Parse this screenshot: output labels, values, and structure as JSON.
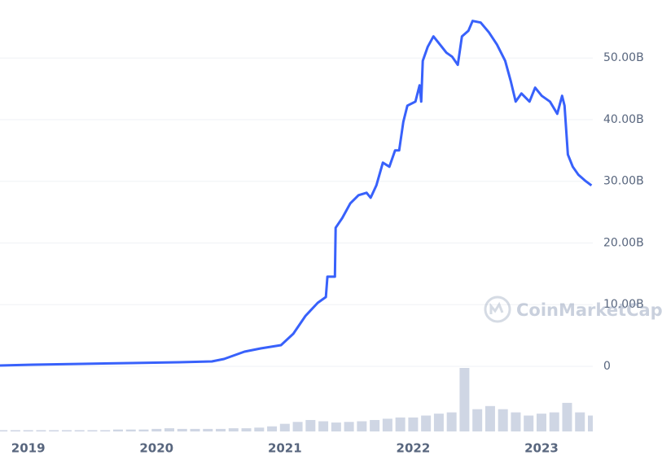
{
  "chart_data": [
    {
      "type": "line",
      "color": "#3861fb",
      "x": [
        2018.78,
        2019.034,
        2019.415,
        2019.796,
        2020.177,
        2020.431,
        2020.526,
        2020.685,
        2020.812,
        2020.97,
        2021.066,
        2021.161,
        2021.256,
        2021.32,
        2021.332,
        2021.39,
        2021.396,
        2021.447,
        2021.51,
        2021.574,
        2021.637,
        2021.669,
        2021.713,
        2021.764,
        2021.815,
        2021.859,
        2021.891,
        2021.923,
        2021.955,
        2022.018,
        2022.05,
        2022.063,
        2022.075,
        2022.113,
        2022.158,
        2022.209,
        2022.259,
        2022.304,
        2022.348,
        2022.38,
        2022.431,
        2022.463,
        2022.526,
        2022.59,
        2022.653,
        2022.717,
        2022.761,
        2022.799,
        2022.844,
        2022.907,
        2022.951,
        2023.002,
        2023.066,
        2023.123,
        2023.161,
        2023.18,
        2023.206,
        2023.244,
        2023.288,
        2023.339,
        2023.39
      ],
      "values": [
        0.13,
        0.26,
        0.4,
        0.53,
        0.66,
        0.79,
        1.19,
        2.38,
        2.91,
        3.43,
        5.28,
        8.19,
        10.3,
        11.23,
        14.53,
        14.53,
        22.46,
        24.04,
        26.42,
        27.74,
        28.14,
        27.34,
        29.33,
        33.03,
        32.36,
        35.01,
        35.01,
        39.63,
        42.27,
        42.93,
        45.57,
        42.93,
        49.54,
        51.78,
        53.5,
        52.18,
        50.86,
        50.2,
        48.88,
        53.5,
        54.43,
        56.01,
        55.75,
        54.16,
        52.18,
        49.54,
        46.23,
        42.93,
        44.25,
        42.93,
        45.18,
        43.86,
        42.93,
        40.95,
        43.86,
        42.27,
        34.35,
        32.36,
        31.04,
        30.12,
        29.33
      ],
      "xlim": [
        2018.78,
        2023.4
      ],
      "xticks": [
        2019,
        2020,
        2021,
        2022,
        2023
      ],
      "ylim": [
        0,
        59.4
      ],
      "yticks": [
        0,
        {
          "value": 10,
          "label": "10.00B"
        },
        {
          "value": 20,
          "label": "20.00B"
        },
        {
          "value": 30,
          "label": "30.00B"
        },
        {
          "value": 40,
          "label": "40.00B"
        },
        {
          "value": 50,
          "label": "50.00B"
        }
      ],
      "grid": true,
      "watermark": "CoinMarketCap"
    },
    {
      "type": "bar",
      "color": "#cfd6e4",
      "x": [
        2018.8,
        2018.9,
        2019.0,
        2019.1,
        2019.2,
        2019.3,
        2019.4,
        2019.5,
        2019.6,
        2019.7,
        2019.8,
        2019.9,
        2020.0,
        2020.1,
        2020.2,
        2020.3,
        2020.4,
        2020.5,
        2020.6,
        2020.7,
        2020.8,
        2020.9,
        2021.0,
        2021.1,
        2021.2,
        2021.3,
        2021.4,
        2021.5,
        2021.6,
        2021.7,
        2021.8,
        2021.9,
        2022.0,
        2022.1,
        2022.2,
        2022.3,
        2022.4,
        2022.5,
        2022.6,
        2022.7,
        2022.8,
        2022.9,
        2023.0,
        2023.1,
        2023.2,
        2023.3,
        2023.4
      ],
      "values": [
        2,
        2,
        2,
        2,
        2,
        2,
        2,
        2,
        2,
        3,
        3,
        3,
        4,
        5,
        4,
        4,
        4,
        4,
        5,
        5,
        6,
        8,
        12,
        15,
        18,
        16,
        14,
        15,
        16,
        18,
        20,
        22,
        22,
        25,
        28,
        30,
        100,
        35,
        40,
        35,
        30,
        25,
        28,
        30,
        45,
        30,
        25
      ],
      "xlim": [
        2018.78,
        2023.4
      ],
      "ylim": [
        0,
        100
      ]
    }
  ]
}
